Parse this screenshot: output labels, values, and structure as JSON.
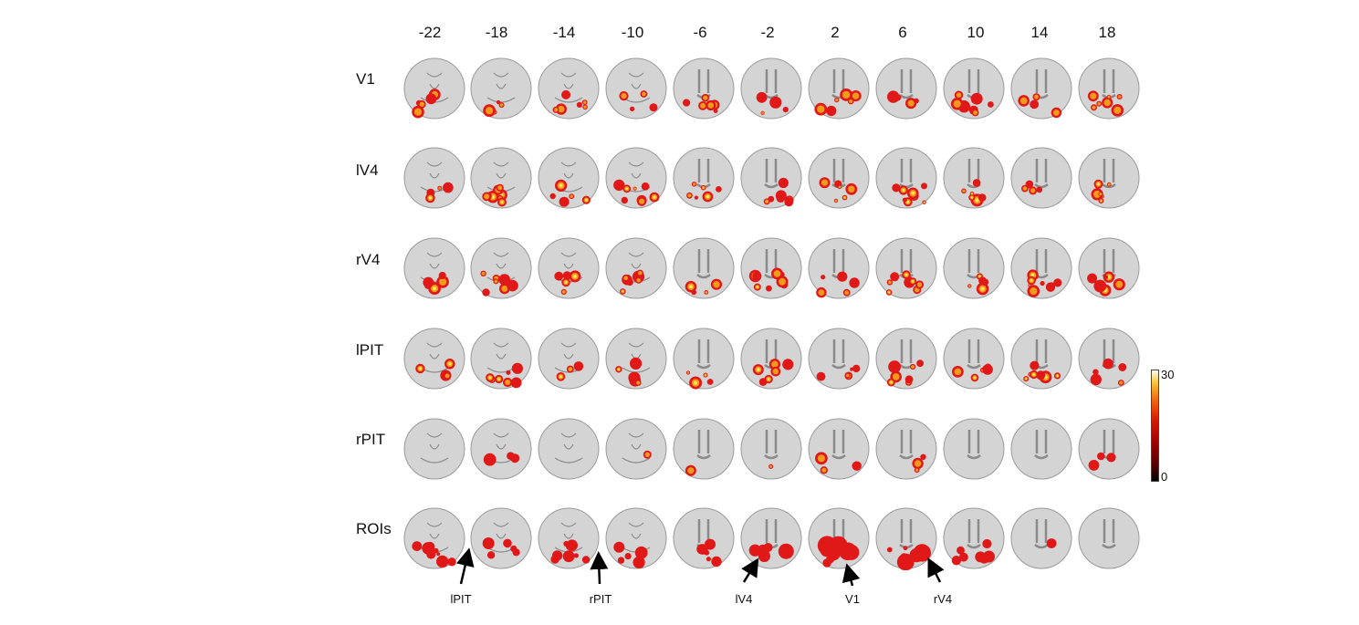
{
  "slice_labels": [
    "-22",
    "-18",
    "-14",
    "-10",
    "-6",
    "-2",
    "2",
    "6",
    "10",
    "14",
    "18"
  ],
  "row_labels": [
    "V1",
    "lV4",
    "rV4",
    "lPIT",
    "rPIT",
    "ROIs"
  ],
  "colorbar": {
    "max_label": "30",
    "min_label": "0"
  },
  "annotations": [
    "lPIT",
    "rPIT",
    "lV4",
    "V1",
    "rV4"
  ],
  "colors": {
    "brain_fill": "#d4d4d4",
    "brain_edge": "#9a9a9a",
    "activation_core": "#f3e85a",
    "activation_mid": "#f29a1c",
    "activation_edge": "#e01818"
  }
}
